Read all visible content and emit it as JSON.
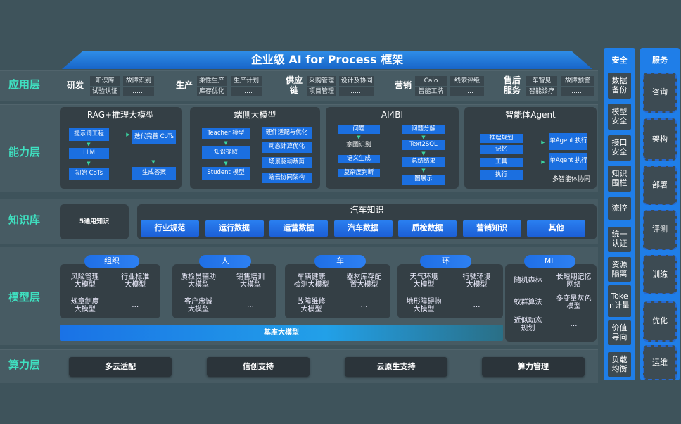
{
  "title": "企业级 AI for Process 框架",
  "layers": [
    "应用层",
    "能力层",
    "知识库",
    "模型层",
    "算力层"
  ],
  "app": {
    "groups": [
      {
        "label": "研发",
        "cells": [
          [
            "知识库",
            "试验认证"
          ],
          [
            "故障识别",
            "……"
          ]
        ]
      },
      {
        "label": "生产",
        "cells": [
          [
            "柔性生产",
            "库存优化"
          ],
          [
            "生产计划",
            "……"
          ]
        ]
      },
      {
        "label": "供应链",
        "cells": [
          [
            "采购管理",
            "项目管理"
          ],
          [
            "设计及协同",
            "……"
          ]
        ]
      },
      {
        "label": "营销",
        "cells": [
          [
            "Calo",
            "智能工牌"
          ],
          [
            "线索评级",
            "……"
          ]
        ]
      },
      {
        "label": "售后服务",
        "cells": [
          [
            "车智见",
            "智能诊疗"
          ],
          [
            "故障预警",
            "……"
          ]
        ]
      }
    ]
  },
  "ability": {
    "panels": [
      {
        "title": "RAG+推理大模型",
        "nodes": [
          "提示词工程",
          "LLM",
          "初始 CoTs",
          "迭代完善 CoTs",
          "生成答案"
        ]
      },
      {
        "title": "端侧大模型",
        "nodes": [
          "Teacher 模型",
          "知识提取",
          "Student 模型",
          "硬件适配与优化",
          "动态计算优化",
          "场景驱动裁剪",
          "端云协同架构"
        ]
      },
      {
        "title": "AI4BI",
        "nodes": [
          "问题",
          "意图识别",
          "语义生成",
          "复杂度判断",
          "问题分解",
          "Text2SQL",
          "总结结果",
          "图展示"
        ]
      },
      {
        "title": "智能体Agent",
        "nodes": [
          "推理规划",
          "记忆",
          "工具",
          "执行",
          "单Agent 执行",
          "单Agent 执行"
        ],
        "footer": "多智能体协同"
      }
    ]
  },
  "knowledge": {
    "general": "5通用知识",
    "auto_title": "汽车知识",
    "items": [
      "行业规范",
      "运行数据",
      "运营数据",
      "汽车数据",
      "质检数据",
      "营销知识",
      "其他"
    ]
  },
  "models": {
    "groups": [
      {
        "label": "组织",
        "items": [
          "风险管理 大模型",
          "行业标准 大模型",
          "规章制度 大模型",
          "…"
        ]
      },
      {
        "label": "人",
        "items": [
          "质检员辅助 大模型",
          "销售培训 大模型",
          "客户忠诚 大模型",
          "…"
        ]
      },
      {
        "label": "车",
        "items": [
          "车辆健康 检测大模型",
          "器材库存配 置大模型",
          "故障维修 大模型",
          "…"
        ]
      },
      {
        "label": "环",
        "items": [
          "天气环境 大模型",
          "行驶环境 大模型",
          "地形障碍物 大模型",
          "…"
        ]
      },
      {
        "label": "ML",
        "items": [
          "随机森林",
          "长短期记忆 网络",
          "蚁群算法",
          "多变量灰色 模型",
          "近似动态 规划",
          "…"
        ]
      }
    ],
    "base": "基座大模型"
  },
  "compute": [
    "多云适配",
    "信创支持",
    "云原生支持",
    "算力管理"
  ],
  "security": {
    "title": "安全",
    "items": [
      "数据备份",
      "模型安全",
      "接口安全",
      "知识围栏",
      "流控",
      "统一认证",
      "资源隔离",
      "Token计量",
      "价值导向",
      "负载均衡"
    ]
  },
  "services": {
    "title": "服务",
    "items": [
      "咨询",
      "架构",
      "部署",
      "评测",
      "训练",
      "优化",
      "运维"
    ]
  },
  "colors": {
    "accent": "#1b6fe0",
    "layer_label": "#3fe0c0",
    "arrow": "#3ad29f",
    "background": "#3e535b"
  }
}
